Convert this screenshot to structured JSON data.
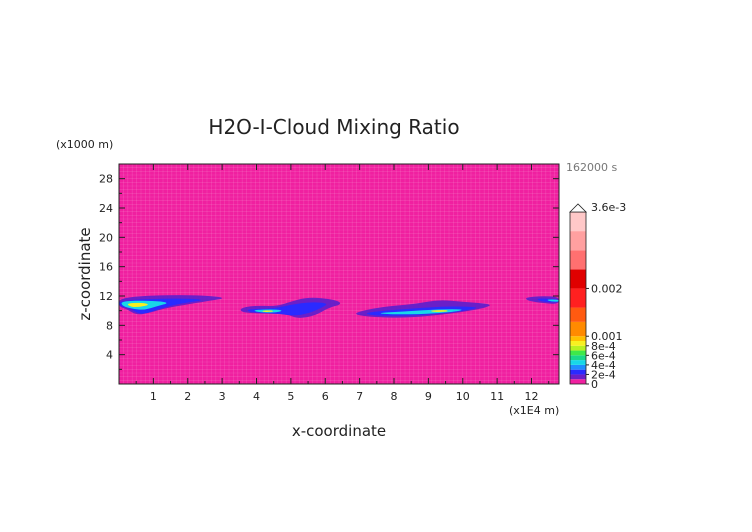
{
  "chart_data": {
    "type": "heatmap",
    "title": "H2O-I-Cloud Mixing Ratio",
    "xlabel": "x-coordinate",
    "ylabel": "z-coordinate",
    "x_unit": "(x1E4 m)",
    "y_unit": "(x1000 m)",
    "time_label": "162000 s",
    "xlim": [
      0,
      12.8
    ],
    "ylim": [
      0,
      30
    ],
    "x_ticks": [
      1,
      2,
      3,
      4,
      5,
      6,
      7,
      8,
      9,
      10,
      11,
      12
    ],
    "y_ticks": [
      4,
      8,
      12,
      16,
      20,
      24,
      28
    ],
    "grid": true,
    "colorbar": {
      "placement": "right",
      "max_label": "3.6e-3",
      "tick_labels": [
        {
          "value": 0,
          "label": "0"
        },
        {
          "value": 0.0002,
          "label": "2e-4"
        },
        {
          "value": 0.0004,
          "label": "4e-4"
        },
        {
          "value": 0.0006,
          "label": "6e-4"
        },
        {
          "value": 0.0008,
          "label": "8e-4"
        },
        {
          "value": 0.001,
          "label": "0.001"
        },
        {
          "value": 0.002,
          "label": "0.002"
        }
      ],
      "levels": [
        {
          "from": 0,
          "to": 0.0001,
          "color": "#f020a0"
        },
        {
          "from": 0.0001,
          "to": 0.0002,
          "color": "#6a1fc8"
        },
        {
          "from": 0.0002,
          "to": 0.0003,
          "color": "#2a2aff"
        },
        {
          "from": 0.0003,
          "to": 0.0004,
          "color": "#1f8fff"
        },
        {
          "from": 0.0004,
          "to": 0.0005,
          "color": "#18d8e8"
        },
        {
          "from": 0.0005,
          "to": 0.0006,
          "color": "#19d88a"
        },
        {
          "from": 0.0006,
          "to": 0.0007,
          "color": "#3ee84a"
        },
        {
          "from": 0.0007,
          "to": 0.0008,
          "color": "#b8f020"
        },
        {
          "from": 0.0008,
          "to": 0.0009,
          "color": "#f8f020"
        },
        {
          "from": 0.0009,
          "to": 0.001,
          "color": "#ffc000"
        },
        {
          "from": 0.001,
          "to": 0.0013,
          "color": "#ff8a00"
        },
        {
          "from": 0.0013,
          "to": 0.0016,
          "color": "#ff5a10"
        },
        {
          "from": 0.0016,
          "to": 0.002,
          "color": "#ff2020"
        },
        {
          "from": 0.002,
          "to": 0.0024,
          "color": "#e00000"
        },
        {
          "from": 0.0024,
          "to": 0.0028,
          "color": "#ff7070"
        },
        {
          "from": 0.0028,
          "to": 0.0032,
          "color": "#ffa0a0"
        },
        {
          "from": 0.0032,
          "to": 0.0036,
          "color": "#ffc8c8"
        }
      ]
    },
    "features": [
      {
        "name": "cloud-band-1",
        "outer": {
          "color": "#6a1fc8",
          "points": [
            [
              0,
              11.9
            ],
            [
              2,
              12.2
            ],
            [
              3.2,
              11.8
            ],
            [
              2.6,
              11.3
            ],
            [
              1.4,
              10.4
            ],
            [
              0.9,
              9.7
            ],
            [
              0.5,
              9.4
            ],
            [
              0.2,
              10.3
            ],
            [
              0,
              10.5
            ]
          ]
        },
        "middle": {
          "color": "#2a2aff",
          "points": [
            [
              0,
              11.4
            ],
            [
              1.6,
              11.7
            ],
            [
              2.6,
              11.5
            ],
            [
              1.8,
              11.0
            ],
            [
              1.2,
              10.3
            ],
            [
              0.8,
              9.6
            ],
            [
              0.55,
              9.6
            ],
            [
              0.3,
              10.4
            ],
            [
              0,
              10.6
            ]
          ]
        },
        "inner": {
          "color": "#18d8e8",
          "points": [
            [
              0.05,
              11.3
            ],
            [
              0.9,
              11.4
            ],
            [
              1.5,
              11.1
            ],
            [
              1.1,
              10.6
            ],
            [
              0.75,
              10.1
            ],
            [
              0.45,
              10.2
            ],
            [
              0.1,
              10.6
            ]
          ]
        },
        "core": {
          "color": "#f8f020",
          "points": [
            [
              0.2,
              11.0
            ],
            [
              0.7,
              11.1
            ],
            [
              0.9,
              10.8
            ],
            [
              0.6,
              10.5
            ],
            [
              0.35,
              10.5
            ]
          ]
        }
      },
      {
        "name": "cloud-band-2",
        "outer": {
          "color": "#6a1fc8",
          "points": [
            [
              3.5,
              10.3
            ],
            [
              3.9,
              10.7
            ],
            [
              4.6,
              10.6
            ],
            [
              4.9,
              11.1
            ],
            [
              5.5,
              11.9
            ],
            [
              6.3,
              11.5
            ],
            [
              6.5,
              10.9
            ],
            [
              6.1,
              10.4
            ],
            [
              5.7,
              9.3
            ],
            [
              5.2,
              8.9
            ],
            [
              4.9,
              9.5
            ],
            [
              4.4,
              9.6
            ],
            [
              3.6,
              9.7
            ]
          ]
        },
        "middle": {
          "color": "#2a2aff",
          "points": [
            [
              3.7,
              10.2
            ],
            [
              4.5,
              10.3
            ],
            [
              5.0,
              10.8
            ],
            [
              5.6,
              11.2
            ],
            [
              6.1,
              11.0
            ],
            [
              5.9,
              10.4
            ],
            [
              5.5,
              9.6
            ],
            [
              5.1,
              9.3
            ],
            [
              4.6,
              9.6
            ],
            [
              3.8,
              9.8
            ]
          ]
        },
        "inner": {
          "color": "#18d8e8",
          "points": [
            [
              3.9,
              10.1
            ],
            [
              4.5,
              10.2
            ],
            [
              4.8,
              10.0
            ],
            [
              4.5,
              9.7
            ],
            [
              4.0,
              9.8
            ]
          ]
        },
        "core": {
          "color": "#f8f020",
          "points": [
            [
              4.15,
              10.0
            ],
            [
              4.45,
              10.05
            ],
            [
              4.5,
              9.85
            ],
            [
              4.2,
              9.8
            ]
          ]
        }
      },
      {
        "name": "cloud-band-3",
        "outer": {
          "color": "#6a1fc8",
          "points": [
            [
              6.9,
              9.8
            ],
            [
              7.6,
              10.5
            ],
            [
              8.6,
              10.9
            ],
            [
              9.3,
              11.5
            ],
            [
              10.0,
              11.2
            ],
            [
              10.9,
              10.9
            ],
            [
              10.6,
              10.3
            ],
            [
              9.7,
              9.6
            ],
            [
              8.4,
              9.0
            ],
            [
              7.5,
              9.1
            ],
            [
              6.9,
              9.4
            ]
          ]
        },
        "middle": {
          "color": "#2a2aff",
          "points": [
            [
              7.1,
              9.7
            ],
            [
              8.0,
              10.1
            ],
            [
              8.9,
              10.4
            ],
            [
              9.6,
              10.6
            ],
            [
              10.5,
              10.5
            ],
            [
              10.2,
              10.1
            ],
            [
              9.4,
              9.6
            ],
            [
              8.3,
              9.3
            ],
            [
              7.4,
              9.3
            ]
          ]
        },
        "inner": {
          "color": "#18d8e8",
          "points": [
            [
              7.5,
              9.7
            ],
            [
              8.4,
              9.9
            ],
            [
              9.3,
              10.2
            ],
            [
              10.1,
              10.2
            ],
            [
              9.7,
              9.8
            ],
            [
              8.7,
              9.5
            ],
            [
              7.8,
              9.5
            ]
          ]
        },
        "core": {
          "color": "#f8f020",
          "points": [
            [
              9.0,
              10.0
            ],
            [
              9.5,
              10.1
            ],
            [
              9.6,
              9.9
            ],
            [
              9.2,
              9.8
            ]
          ]
        }
      },
      {
        "name": "cloud-band-4",
        "outer": {
          "color": "#6a1fc8",
          "points": [
            [
              11.8,
              11.8
            ],
            [
              12.3,
              12.0
            ],
            [
              12.8,
              11.9
            ],
            [
              12.8,
              10.9
            ],
            [
              12.4,
              11.0
            ],
            [
              11.9,
              11.3
            ]
          ]
        },
        "middle": {
          "color": "#2a2aff",
          "points": [
            [
              12.1,
              11.7
            ],
            [
              12.8,
              11.6
            ],
            [
              12.8,
              11.1
            ],
            [
              12.3,
              11.2
            ]
          ]
        },
        "inner": {
          "color": "#18d8e8",
          "points": [
            [
              12.45,
              11.55
            ],
            [
              12.8,
              11.5
            ],
            [
              12.8,
              11.2
            ],
            [
              12.5,
              11.3
            ]
          ]
        }
      }
    ]
  }
}
